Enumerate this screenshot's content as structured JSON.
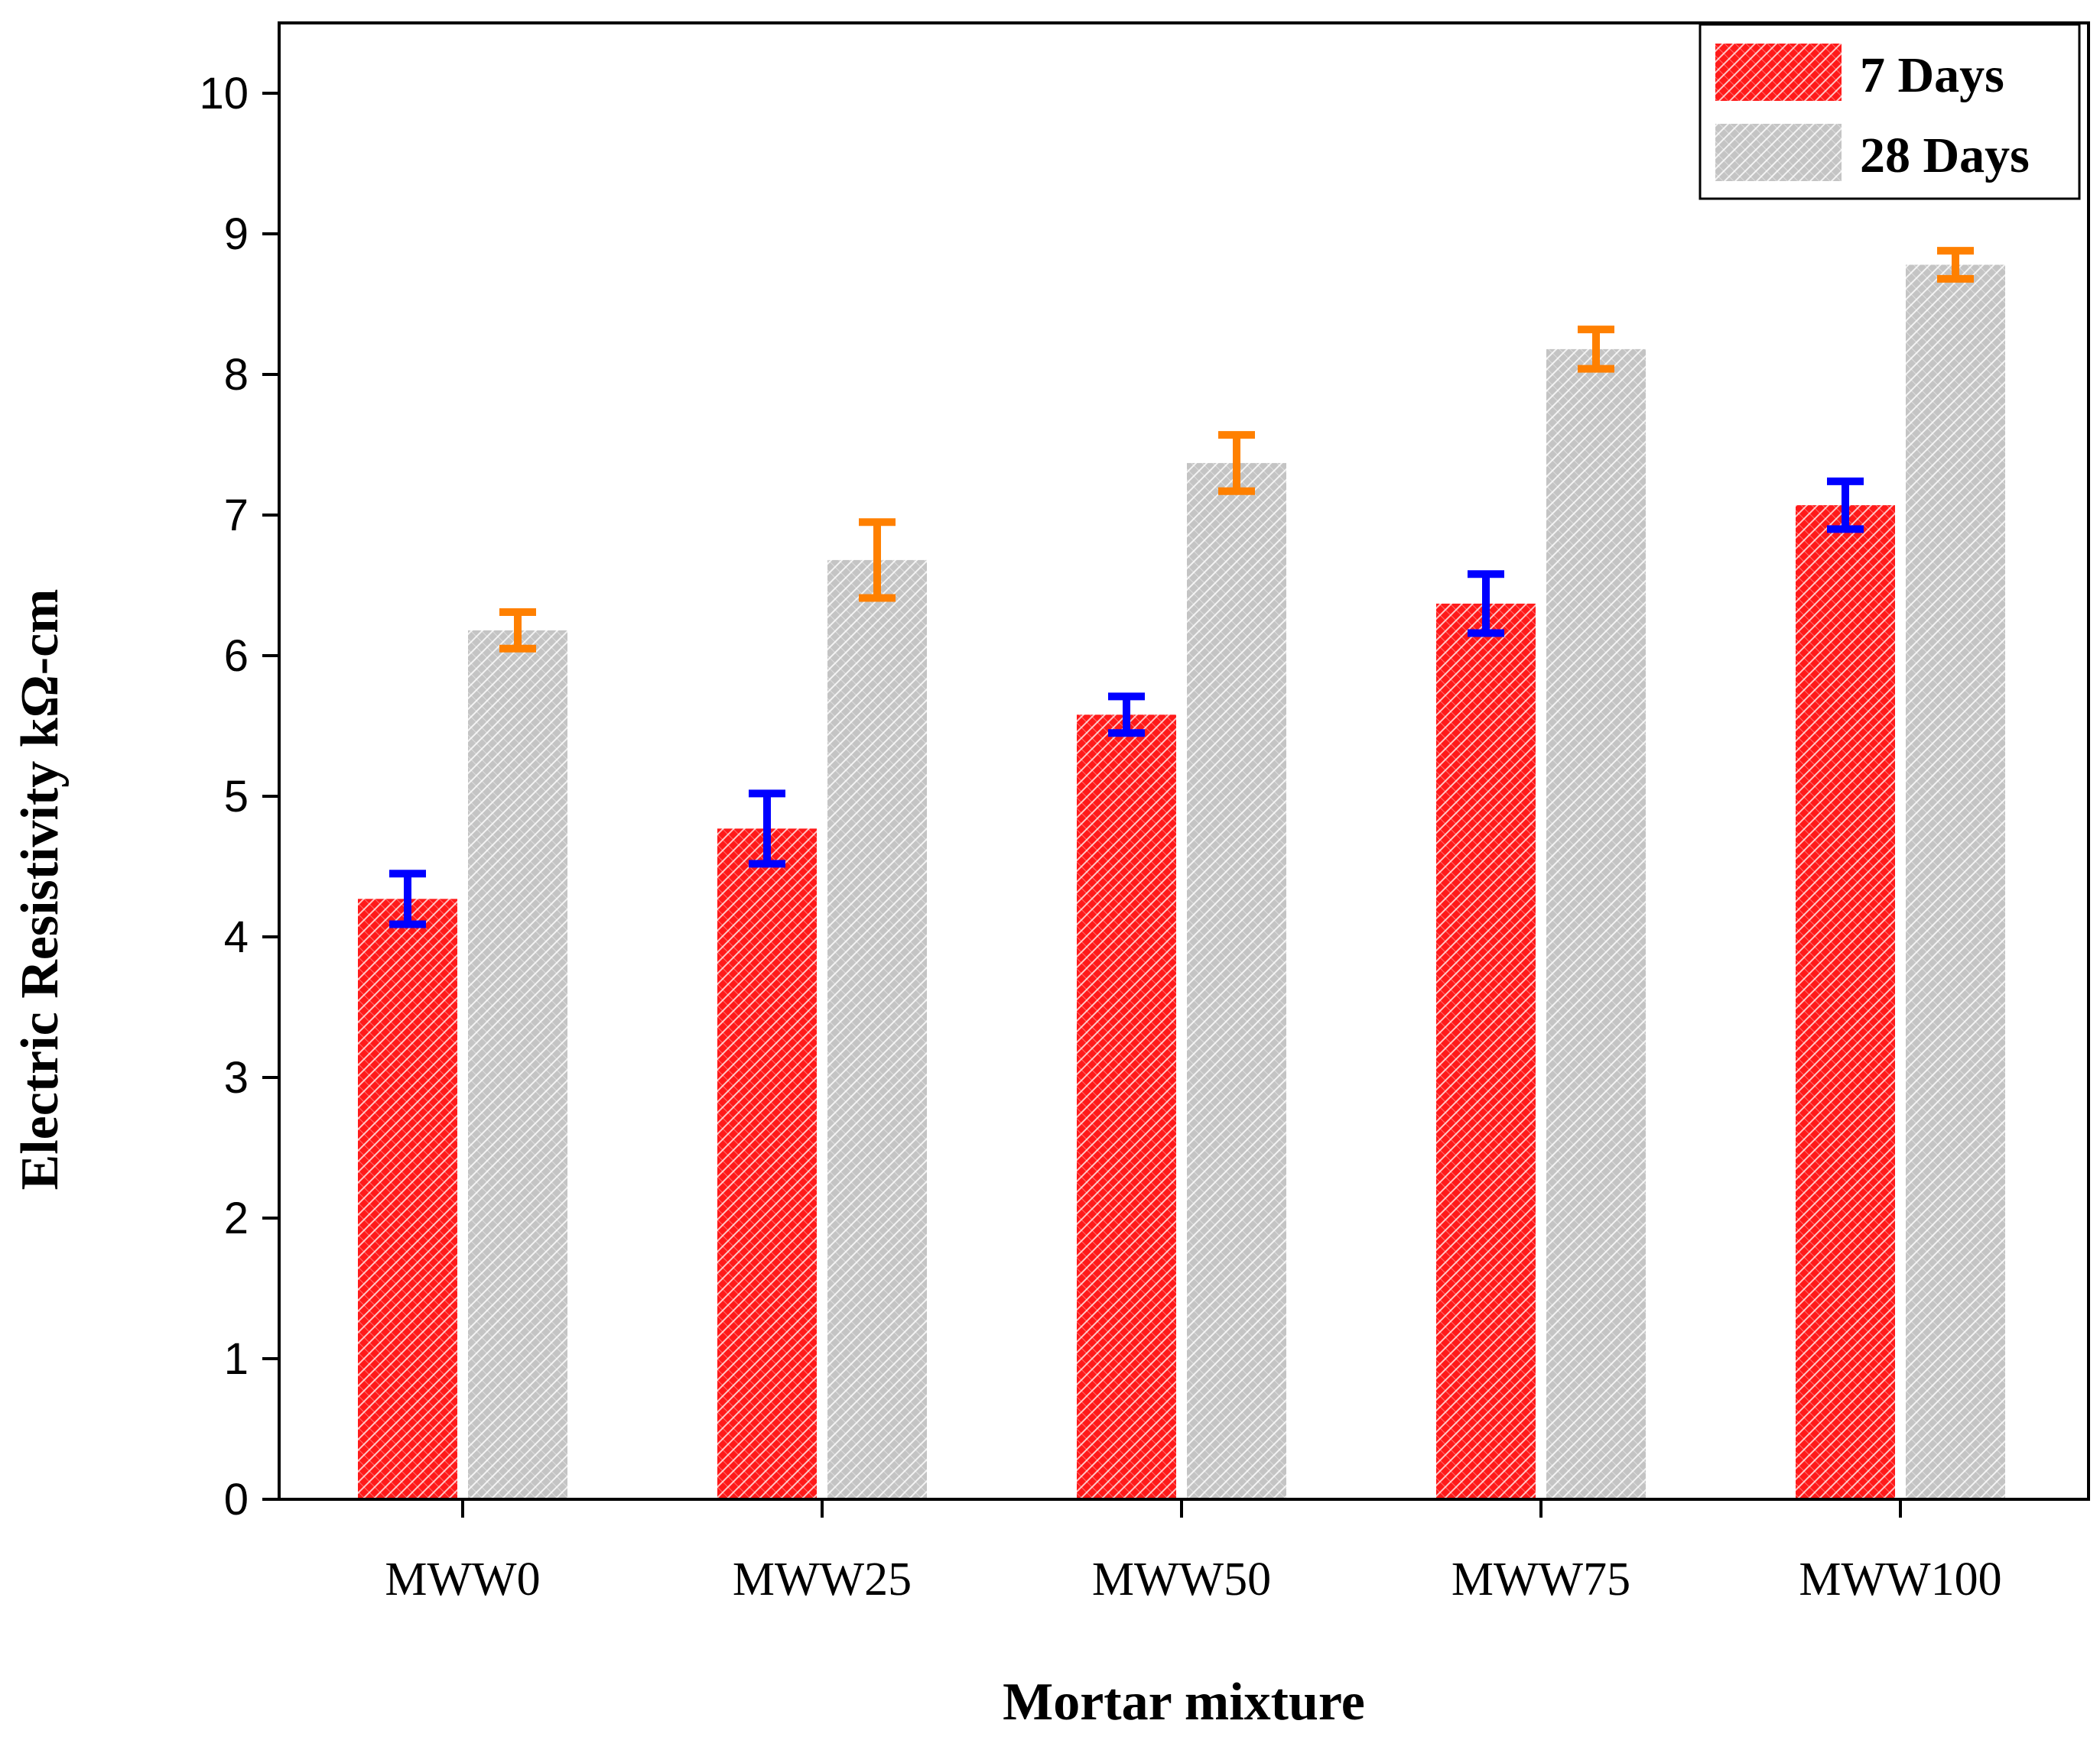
{
  "chart_data": {
    "type": "bar",
    "categories": [
      "MWW0",
      "MWW25",
      "MWW50",
      "MWW75",
      "MWW100"
    ],
    "series": [
      {
        "name": "7 Days",
        "values": [
          4.27,
          4.77,
          5.58,
          6.37,
          7.07
        ],
        "error": [
          0.18,
          0.25,
          0.13,
          0.21,
          0.17
        ],
        "color": "#ff1a1a",
        "error_color": "#0000ff",
        "pattern": "crosshatch"
      },
      {
        "name": "28 Days",
        "values": [
          6.18,
          6.68,
          7.37,
          8.18,
          8.78
        ],
        "error": [
          0.13,
          0.27,
          0.2,
          0.14,
          0.1
        ],
        "color": "#c4c4c4",
        "error_color": "#ff8000",
        "pattern": "crosshatch"
      }
    ],
    "xlabel": "Mortar mixture",
    "ylabel": "Electric Resistivity kΩ-cm",
    "ylim": [
      0,
      10.5
    ],
    "yticks": [
      "0",
      "1",
      "2",
      "3",
      "4",
      "5",
      "6",
      "7",
      "8",
      "9",
      "10"
    ],
    "grid": false,
    "legend_position": "top-right"
  }
}
